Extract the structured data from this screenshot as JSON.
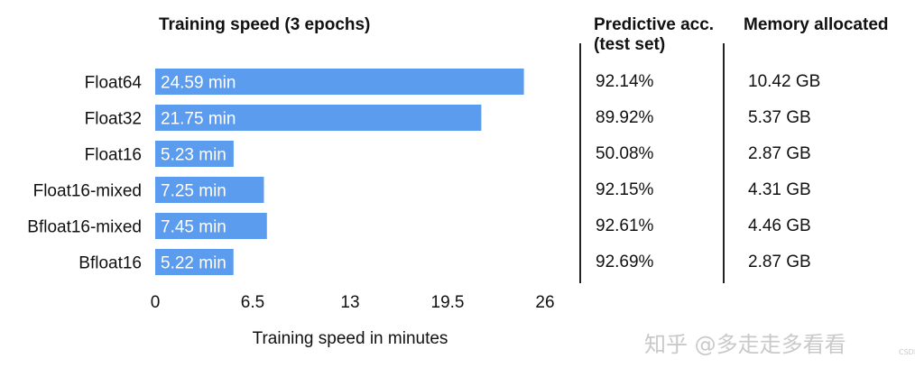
{
  "chart_data": {
    "type": "bar",
    "orientation": "horizontal",
    "title": "Training speed (3 epochs)",
    "xlabel": "Training speed in minutes",
    "ylabel": "",
    "xlim": [
      0,
      26
    ],
    "xticks": [
      "0",
      "6.5",
      "13",
      "19.5",
      "26"
    ],
    "categories": [
      "Float64",
      "Float32",
      "Float16",
      "Float16-mixed",
      "Bfloat16-mixed",
      "Bfloat16"
    ],
    "values": [
      24.59,
      21.75,
      5.23,
      7.25,
      7.45,
      5.22
    ],
    "data_labels": [
      "24.59 min",
      "21.75 min",
      "5.23 min",
      "7.25 min",
      "7.45 min",
      "5.22 min"
    ],
    "bar_color": "#5b9cee",
    "grid": false
  },
  "table": {
    "headers": [
      {
        "lines": [
          "Predictive acc.",
          "(test set)"
        ]
      },
      {
        "lines": [
          "Memory allocated"
        ]
      }
    ],
    "rows": [
      {
        "acc": "92.14%",
        "mem": "10.42 GB"
      },
      {
        "acc": "89.92%",
        "mem": "5.37 GB"
      },
      {
        "acc": "50.08%",
        "mem": "2.87 GB"
      },
      {
        "acc": "92.15%",
        "mem": "4.31 GB"
      },
      {
        "acc": "92.61%",
        "mem": "4.46 GB"
      },
      {
        "acc": "92.69%",
        "mem": "2.87 GB"
      }
    ]
  },
  "watermark": {
    "text": "知乎 @多走走多看看",
    "small": "CSDN"
  }
}
